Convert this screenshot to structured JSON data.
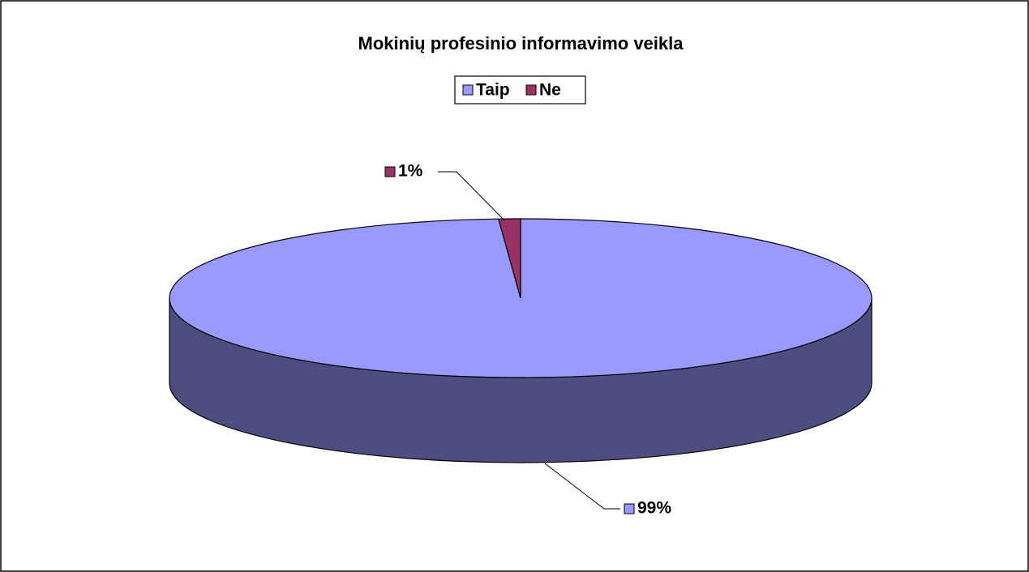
{
  "chart_data": {
    "type": "pie3d",
    "title": "Mokinių profesinio informavimo veikla",
    "categories": [
      "Taip",
      "Ne"
    ],
    "values": [
      99,
      1
    ],
    "value_labels": [
      "99%",
      "1%"
    ],
    "colors": [
      "#9999ff",
      "#993366"
    ],
    "legend": "top"
  }
}
